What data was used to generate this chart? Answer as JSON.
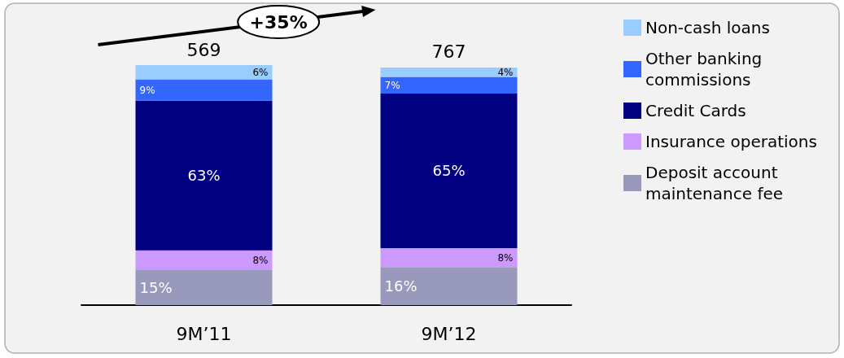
{
  "chart_data": {
    "type": "bar",
    "stacked": true,
    "categories": [
      "9M’11",
      "9M’12"
    ],
    "series": [
      {
        "name": "Deposit account maintenance fee",
        "color": "#9999bb",
        "values": [
          15,
          16
        ],
        "value_labels": [
          "15%",
          "16%"
        ]
      },
      {
        "name": "Insurance operations",
        "color": "#cc99ff",
        "values": [
          8,
          8
        ],
        "value_labels": [
          "8%",
          "8%"
        ]
      },
      {
        "name": "Credit Cards",
        "color": "#000080",
        "values": [
          63,
          65
        ],
        "value_labels": [
          "63%",
          "65%"
        ]
      },
      {
        "name": "Other banking commissions",
        "color": "#3366ff",
        "values": [
          9,
          7
        ],
        "value_labels": [
          "9%",
          "7%"
        ]
      },
      {
        "name": "Non-cash loans",
        "color": "#99ccff",
        "values": [
          6,
          4
        ],
        "value_labels": [
          "6%",
          "4%"
        ]
      }
    ],
    "annotations": [
      "+35%",
      "569",
      "767"
    ],
    "legend": "right"
  }
}
